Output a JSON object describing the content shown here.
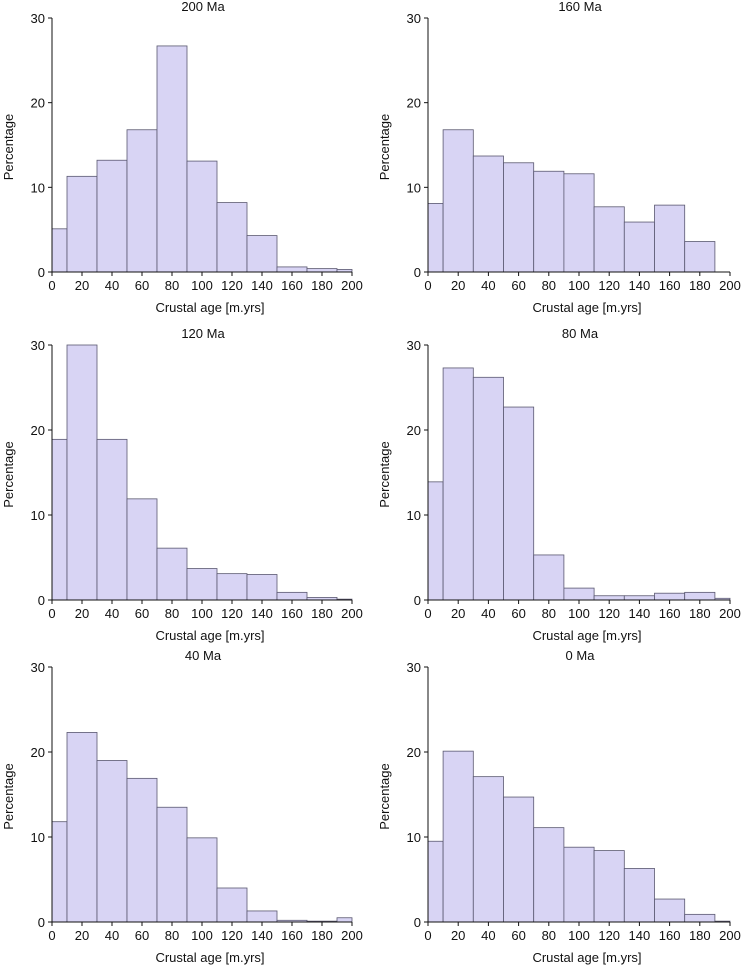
{
  "chart_data": [
    {
      "type": "bar",
      "title": "200 Ma",
      "xlabel": "Crustal age [m.yrs]",
      "ylabel": "Percentage",
      "xlim": [
        0,
        200
      ],
      "ylim": [
        0,
        30
      ],
      "xticks": [
        "0",
        "20",
        "40",
        "60",
        "80",
        "100",
        "120",
        "140",
        "160",
        "180",
        "200"
      ],
      "yticks": [
        "0",
        "10",
        "20",
        "30"
      ],
      "bins": [
        {
          "range": [
            0,
            10
          ],
          "value": 5.1
        },
        {
          "range": [
            10,
            30
          ],
          "value": 11.3
        },
        {
          "range": [
            30,
            50
          ],
          "value": 13.2
        },
        {
          "range": [
            50,
            70
          ],
          "value": 16.8
        },
        {
          "range": [
            70,
            90
          ],
          "value": 26.7
        },
        {
          "range": [
            90,
            110
          ],
          "value": 13.1
        },
        {
          "range": [
            110,
            130
          ],
          "value": 8.2
        },
        {
          "range": [
            130,
            150
          ],
          "value": 4.3
        },
        {
          "range": [
            150,
            170
          ],
          "value": 0.6
        },
        {
          "range": [
            170,
            190
          ],
          "value": 0.4
        },
        {
          "range": [
            190,
            200
          ],
          "value": 0.3
        }
      ]
    },
    {
      "type": "bar",
      "title": "160 Ma",
      "xlabel": "Crustal age [m.yrs]",
      "ylabel": "Percentage",
      "xlim": [
        0,
        200
      ],
      "ylim": [
        0,
        30
      ],
      "xticks": [
        "0",
        "20",
        "40",
        "60",
        "80",
        "100",
        "120",
        "140",
        "160",
        "180",
        "200"
      ],
      "yticks": [
        "0",
        "10",
        "20",
        "30"
      ],
      "bins": [
        {
          "range": [
            0,
            10
          ],
          "value": 8.1
        },
        {
          "range": [
            10,
            30
          ],
          "value": 16.8
        },
        {
          "range": [
            30,
            50
          ],
          "value": 13.7
        },
        {
          "range": [
            50,
            70
          ],
          "value": 12.9
        },
        {
          "range": [
            70,
            90
          ],
          "value": 11.9
        },
        {
          "range": [
            90,
            110
          ],
          "value": 11.6
        },
        {
          "range": [
            110,
            130
          ],
          "value": 7.7
        },
        {
          "range": [
            130,
            150
          ],
          "value": 5.9
        },
        {
          "range": [
            150,
            170
          ],
          "value": 7.9
        },
        {
          "range": [
            170,
            190
          ],
          "value": 3.6
        }
      ]
    },
    {
      "type": "bar",
      "title": "120 Ma",
      "xlabel": "Crustal age [m.yrs]",
      "ylabel": "Percentage",
      "xlim": [
        0,
        200
      ],
      "ylim": [
        0,
        30
      ],
      "xticks": [
        "0",
        "20",
        "40",
        "60",
        "80",
        "100",
        "120",
        "140",
        "160",
        "180",
        "200"
      ],
      "yticks": [
        "0",
        "10",
        "20",
        "30"
      ],
      "bins": [
        {
          "range": [
            0,
            10
          ],
          "value": 18.9
        },
        {
          "range": [
            10,
            30
          ],
          "value": 30.0
        },
        {
          "range": [
            30,
            50
          ],
          "value": 18.9
        },
        {
          "range": [
            50,
            70
          ],
          "value": 11.9
        },
        {
          "range": [
            70,
            90
          ],
          "value": 6.1
        },
        {
          "range": [
            90,
            110
          ],
          "value": 3.7
        },
        {
          "range": [
            110,
            130
          ],
          "value": 3.1
        },
        {
          "range": [
            130,
            150
          ],
          "value": 3.0
        },
        {
          "range": [
            150,
            170
          ],
          "value": 0.9
        },
        {
          "range": [
            170,
            190
          ],
          "value": 0.3
        },
        {
          "range": [
            190,
            200
          ],
          "value": 0.1
        }
      ]
    },
    {
      "type": "bar",
      "title": "80 Ma",
      "xlabel": "Crustal age [m.yrs]",
      "ylabel": "Percentage",
      "xlim": [
        0,
        200
      ],
      "ylim": [
        0,
        30
      ],
      "xticks": [
        "0",
        "20",
        "40",
        "60",
        "80",
        "100",
        "120",
        "140",
        "160",
        "180",
        "200"
      ],
      "yticks": [
        "0",
        "10",
        "20",
        "30"
      ],
      "bins": [
        {
          "range": [
            0,
            10
          ],
          "value": 13.9
        },
        {
          "range": [
            10,
            30
          ],
          "value": 27.3
        },
        {
          "range": [
            30,
            50
          ],
          "value": 26.2
        },
        {
          "range": [
            50,
            70
          ],
          "value": 22.7
        },
        {
          "range": [
            70,
            90
          ],
          "value": 5.3
        },
        {
          "range": [
            90,
            110
          ],
          "value": 1.4
        },
        {
          "range": [
            110,
            130
          ],
          "value": 0.5
        },
        {
          "range": [
            130,
            150
          ],
          "value": 0.5
        },
        {
          "range": [
            150,
            170
          ],
          "value": 0.8
        },
        {
          "range": [
            170,
            190
          ],
          "value": 0.9
        },
        {
          "range": [
            190,
            200
          ],
          "value": 0.2
        }
      ]
    },
    {
      "type": "bar",
      "title": "40 Ma",
      "xlabel": "Crustal age [m.yrs]",
      "ylabel": "Percentage",
      "xlim": [
        0,
        200
      ],
      "ylim": [
        0,
        30
      ],
      "xticks": [
        "0",
        "20",
        "40",
        "60",
        "80",
        "100",
        "120",
        "140",
        "160",
        "180",
        "200"
      ],
      "yticks": [
        "0",
        "10",
        "20",
        "30"
      ],
      "bins": [
        {
          "range": [
            0,
            10
          ],
          "value": 11.8
        },
        {
          "range": [
            10,
            30
          ],
          "value": 22.3
        },
        {
          "range": [
            30,
            50
          ],
          "value": 19.0
        },
        {
          "range": [
            50,
            70
          ],
          "value": 16.9
        },
        {
          "range": [
            70,
            90
          ],
          "value": 13.5
        },
        {
          "range": [
            90,
            110
          ],
          "value": 9.9
        },
        {
          "range": [
            110,
            130
          ],
          "value": 4.0
        },
        {
          "range": [
            130,
            150
          ],
          "value": 1.3
        },
        {
          "range": [
            150,
            170
          ],
          "value": 0.2
        },
        {
          "range": [
            170,
            190
          ],
          "value": 0.1
        },
        {
          "range": [
            190,
            200
          ],
          "value": 0.5
        }
      ]
    },
    {
      "type": "bar",
      "title": "0 Ma",
      "xlabel": "Crustal age [m.yrs]",
      "ylabel": "Percentage",
      "xlim": [
        0,
        200
      ],
      "ylim": [
        0,
        30
      ],
      "xticks": [
        "0",
        "20",
        "40",
        "60",
        "80",
        "100",
        "120",
        "140",
        "160",
        "180",
        "200"
      ],
      "yticks": [
        "0",
        "10",
        "20",
        "30"
      ],
      "bins": [
        {
          "range": [
            0,
            10
          ],
          "value": 9.5
        },
        {
          "range": [
            10,
            30
          ],
          "value": 20.1
        },
        {
          "range": [
            30,
            50
          ],
          "value": 17.1
        },
        {
          "range": [
            50,
            70
          ],
          "value": 14.7
        },
        {
          "range": [
            70,
            90
          ],
          "value": 11.1
        },
        {
          "range": [
            90,
            110
          ],
          "value": 8.8
        },
        {
          "range": [
            110,
            130
          ],
          "value": 8.4
        },
        {
          "range": [
            130,
            150
          ],
          "value": 6.3
        },
        {
          "range": [
            150,
            170
          ],
          "value": 2.7
        },
        {
          "range": [
            170,
            190
          ],
          "value": 0.9
        },
        {
          "range": [
            190,
            200
          ],
          "value": 0.1
        }
      ]
    }
  ]
}
